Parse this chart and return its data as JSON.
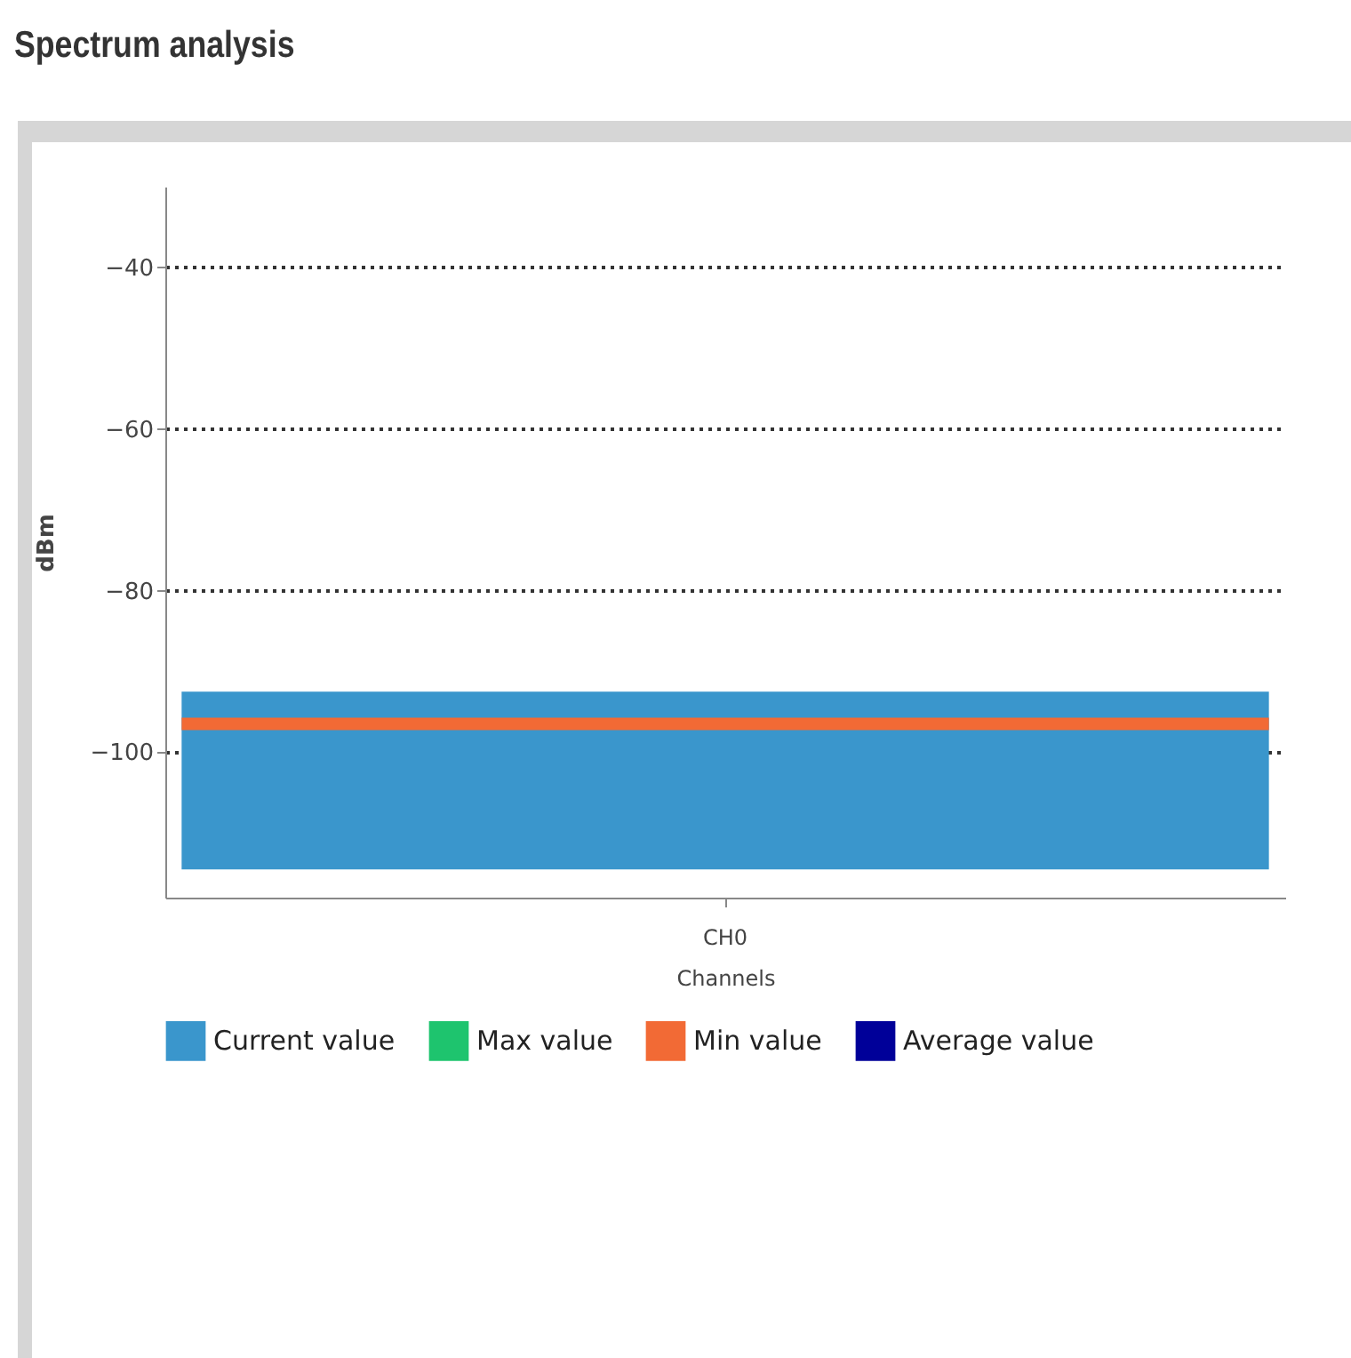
{
  "chart_data": {
    "type": "bar",
    "title": "Spectrum analysis",
    "xlabel": "Channels",
    "ylabel": "dBm",
    "categories": [
      "CH0"
    ],
    "series": [
      {
        "name": "Current value",
        "color": "#3a96cc",
        "values": [
          22
        ],
        "base": [
          -114.5
        ]
      },
      {
        "name": "Max value",
        "color": "#1ec46e",
        "values": [
          null
        ]
      },
      {
        "name": "Min value",
        "color": "#f26a35",
        "values": [
          null
        ]
      },
      {
        "name": "Average value",
        "color": "#000099",
        "values": [
          null
        ]
      }
    ],
    "ref_lines": [
      {
        "axis": "y",
        "value": -96.5,
        "color": "#f26a35"
      }
    ],
    "ylim": [
      -118,
      -30
    ],
    "yticks": [
      -40,
      -60,
      -80,
      -100
    ],
    "grid": "y",
    "legend": "bottom"
  }
}
